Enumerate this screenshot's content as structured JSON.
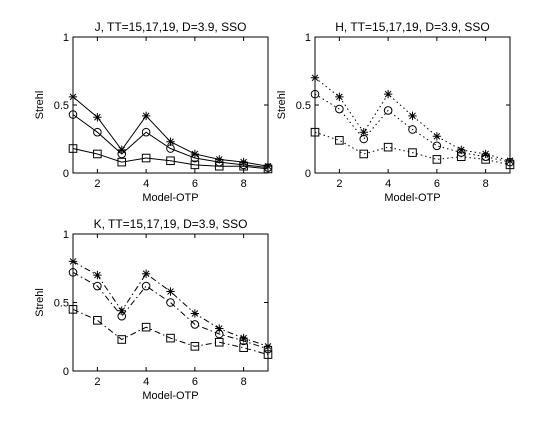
{
  "chart_data": [
    {
      "type": "line",
      "title": "J, TT=15,17,19, D=3.9, SSO",
      "xlabel": "Model-OTP",
      "ylabel": "Strehl",
      "xlim": [
        1,
        9
      ],
      "ylim": [
        0,
        1
      ],
      "xticks": [
        "2",
        "4",
        "6",
        "8"
      ],
      "yticks": [
        "0",
        "0.5",
        "1"
      ],
      "grid": false,
      "line_style": "solid",
      "x": [
        1,
        2,
        3,
        4,
        5,
        6,
        7,
        8,
        9
      ],
      "series": [
        {
          "marker": "star",
          "values": [
            0.56,
            0.41,
            0.17,
            0.42,
            0.23,
            0.14,
            0.1,
            0.08,
            0.05
          ]
        },
        {
          "marker": "circle",
          "values": [
            0.43,
            0.3,
            0.14,
            0.3,
            0.18,
            0.11,
            0.08,
            0.06,
            0.04
          ]
        },
        {
          "marker": "square",
          "values": [
            0.18,
            0.14,
            0.08,
            0.11,
            0.09,
            0.06,
            0.05,
            0.05,
            0.03
          ]
        }
      ]
    },
    {
      "type": "line",
      "title": "H, TT=15,17,19, D=3.9, SSO",
      "xlabel": "Model-OTP",
      "ylabel": "Strehl",
      "xlim": [
        1,
        9
      ],
      "ylim": [
        0,
        1
      ],
      "xticks": [
        "2",
        "4",
        "6",
        "8"
      ],
      "yticks": [
        "0",
        "0.5",
        "1"
      ],
      "grid": false,
      "line_style": "dotted",
      "x": [
        1,
        2,
        3,
        4,
        5,
        6,
        7,
        8,
        9
      ],
      "series": [
        {
          "marker": "star",
          "values": [
            0.7,
            0.56,
            0.3,
            0.58,
            0.42,
            0.27,
            0.17,
            0.14,
            0.09
          ]
        },
        {
          "marker": "circle",
          "values": [
            0.58,
            0.47,
            0.25,
            0.46,
            0.32,
            0.2,
            0.15,
            0.12,
            0.08
          ]
        },
        {
          "marker": "square",
          "values": [
            0.3,
            0.24,
            0.14,
            0.19,
            0.15,
            0.1,
            0.12,
            0.1,
            0.06
          ]
        }
      ]
    },
    {
      "type": "line",
      "title": "K, TT=15,17,19, D=3.9, SSO",
      "xlabel": "Model-OTP",
      "ylabel": "Strehl",
      "xlim": [
        1,
        9
      ],
      "ylim": [
        0,
        1
      ],
      "xticks": [
        "2",
        "4",
        "6",
        "8"
      ],
      "yticks": [
        "0",
        "0.5",
        "1"
      ],
      "grid": false,
      "line_style": "dashdot",
      "x": [
        1,
        2,
        3,
        4,
        5,
        6,
        7,
        8,
        9
      ],
      "series": [
        {
          "marker": "star",
          "values": [
            0.8,
            0.7,
            0.44,
            0.71,
            0.58,
            0.42,
            0.31,
            0.24,
            0.18
          ]
        },
        {
          "marker": "circle",
          "values": [
            0.72,
            0.62,
            0.4,
            0.62,
            0.5,
            0.34,
            0.27,
            0.22,
            0.16
          ]
        },
        {
          "marker": "square",
          "values": [
            0.45,
            0.37,
            0.23,
            0.32,
            0.24,
            0.18,
            0.21,
            0.17,
            0.12
          ]
        }
      ]
    }
  ]
}
